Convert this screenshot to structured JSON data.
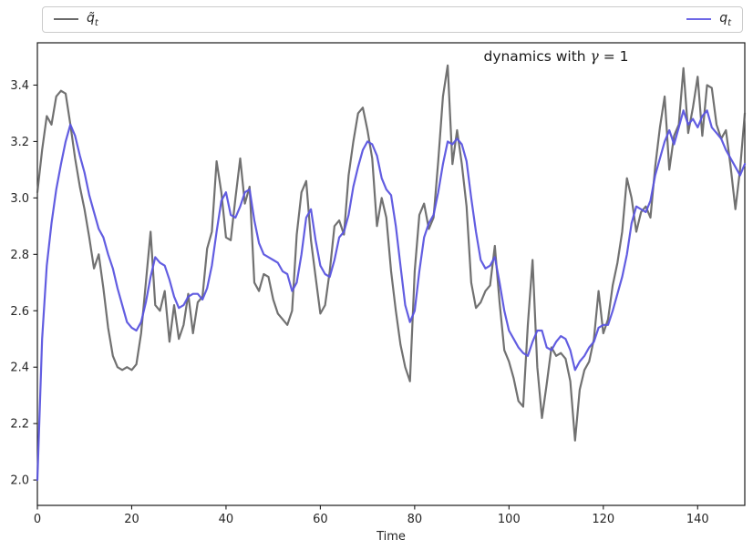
{
  "figure": {
    "title": {
      "prefix": "dynamics with ",
      "gamma": "γ",
      "suffix": " = 1"
    },
    "xlabel": "Time",
    "legend": [
      {
        "label_base": "q̃",
        "label_sub": "t",
        "color": "#5d5d5d"
      },
      {
        "label_base": "q",
        "label_sub": "t",
        "color": "#5a54df"
      }
    ]
  },
  "chart_data": {
    "type": "line",
    "title": "dynamics with γ = 1",
    "xlabel": "Time",
    "ylabel": "",
    "xlim": [
      0,
      150
    ],
    "ylim": [
      1.91,
      3.55
    ],
    "x_ticks": [
      0,
      20,
      40,
      60,
      80,
      100,
      120,
      140
    ],
    "y_ticks": [
      2.0,
      2.2,
      2.4,
      2.6,
      2.8,
      3.0,
      3.2,
      3.4
    ],
    "grid": false,
    "legend_position": "expanded above axes, ncol 2",
    "x_start": 0,
    "x_step": 1,
    "series": [
      {
        "name": "q̃_t",
        "color": "#5d5d5d",
        "values": [
          3.02,
          3.17,
          3.29,
          3.26,
          3.36,
          3.38,
          3.37,
          3.26,
          3.14,
          3.04,
          2.96,
          2.86,
          2.75,
          2.8,
          2.68,
          2.54,
          2.44,
          2.4,
          2.39,
          2.4,
          2.39,
          2.41,
          2.52,
          2.7,
          2.88,
          2.62,
          2.6,
          2.67,
          2.49,
          2.62,
          2.5,
          2.55,
          2.66,
          2.52,
          2.63,
          2.65,
          2.82,
          2.88,
          3.13,
          3.02,
          2.86,
          2.85,
          3.0,
          3.14,
          2.98,
          3.04,
          2.7,
          2.67,
          2.73,
          2.72,
          2.64,
          2.59,
          2.57,
          2.55,
          2.6,
          2.87,
          3.02,
          3.06,
          2.85,
          2.72,
          2.59,
          2.62,
          2.74,
          2.9,
          2.92,
          2.87,
          3.08,
          3.2,
          3.3,
          3.32,
          3.24,
          3.14,
          2.9,
          3.0,
          2.93,
          2.74,
          2.6,
          2.48,
          2.4,
          2.35,
          2.74,
          2.94,
          2.98,
          2.89,
          2.93,
          3.13,
          3.36,
          3.47,
          3.12,
          3.24,
          3.12,
          2.97,
          2.7,
          2.61,
          2.63,
          2.67,
          2.69,
          2.83,
          2.63,
          2.46,
          2.42,
          2.36,
          2.28,
          2.26,
          2.55,
          2.78,
          2.4,
          2.22,
          2.34,
          2.47,
          2.44,
          2.45,
          2.43,
          2.35,
          2.14,
          2.32,
          2.39,
          2.42,
          2.5,
          2.67,
          2.52,
          2.57,
          2.69,
          2.77,
          2.88,
          3.07,
          3.0,
          2.88,
          2.95,
          2.97,
          2.93,
          3.11,
          3.25,
          3.36,
          3.1,
          3.22,
          3.26,
          3.46,
          3.23,
          3.32,
          3.43,
          3.22,
          3.4,
          3.39,
          3.26,
          3.21,
          3.24,
          3.11,
          2.96,
          3.1,
          3.3
        ]
      },
      {
        "name": "q_t",
        "color": "#5a54df",
        "values": [
          2.0,
          2.5,
          2.76,
          2.91,
          3.03,
          3.12,
          3.2,
          3.26,
          3.22,
          3.15,
          3.09,
          3.01,
          2.95,
          2.89,
          2.86,
          2.8,
          2.75,
          2.68,
          2.62,
          2.56,
          2.54,
          2.53,
          2.56,
          2.63,
          2.72,
          2.79,
          2.77,
          2.76,
          2.71,
          2.65,
          2.61,
          2.62,
          2.65,
          2.66,
          2.66,
          2.64,
          2.68,
          2.76,
          2.88,
          2.99,
          3.02,
          2.94,
          2.93,
          2.97,
          3.02,
          3.03,
          2.92,
          2.84,
          2.8,
          2.79,
          2.78,
          2.77,
          2.74,
          2.73,
          2.67,
          2.7,
          2.8,
          2.93,
          2.96,
          2.85,
          2.76,
          2.73,
          2.72,
          2.78,
          2.86,
          2.88,
          2.94,
          3.04,
          3.11,
          3.17,
          3.2,
          3.19,
          3.15,
          3.07,
          3.03,
          3.01,
          2.9,
          2.76,
          2.62,
          2.56,
          2.6,
          2.74,
          2.86,
          2.91,
          2.94,
          3.02,
          3.12,
          3.2,
          3.19,
          3.21,
          3.19,
          3.13,
          3.0,
          2.88,
          2.78,
          2.75,
          2.76,
          2.79,
          2.7,
          2.6,
          2.53,
          2.5,
          2.47,
          2.45,
          2.44,
          2.49,
          2.53,
          2.53,
          2.47,
          2.46,
          2.49,
          2.51,
          2.5,
          2.46,
          2.39,
          2.42,
          2.44,
          2.47,
          2.49,
          2.54,
          2.55,
          2.55,
          2.6,
          2.66,
          2.72,
          2.8,
          2.91,
          2.97,
          2.96,
          2.95,
          2.99,
          3.08,
          3.14,
          3.2,
          3.24,
          3.19,
          3.25,
          3.31,
          3.26,
          3.28,
          3.25,
          3.29,
          3.31,
          3.25,
          3.23,
          3.21,
          3.17,
          3.14,
          3.11,
          3.08,
          3.12
        ]
      }
    ]
  }
}
